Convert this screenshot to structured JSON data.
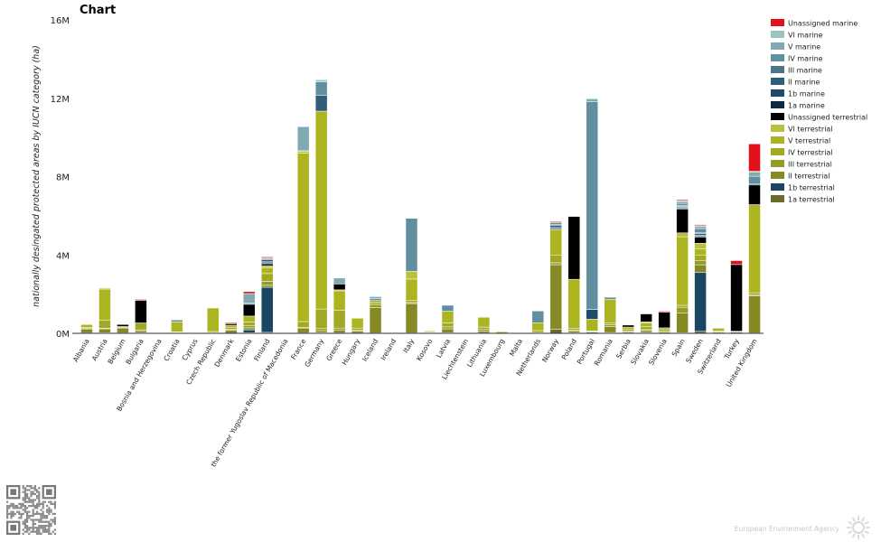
{
  "footer": {
    "brand": "European Environment Agency"
  },
  "chart_data": {
    "type": "bar",
    "stacked": true,
    "title": "Chart",
    "ylabel": "nationally desingated protected areas by IUCN category (ha)",
    "xlabel": "",
    "ylim": [
      0,
      16000000
    ],
    "yticks": [
      0,
      4000000,
      8000000,
      12000000,
      16000000
    ],
    "ytick_labels": [
      "0M",
      "4M",
      "8M",
      "12M",
      "16M"
    ],
    "grid": false,
    "legend_position": "top-right",
    "categories": [
      "Albania",
      "Austria",
      "Belgium",
      "Bulgaria",
      "Bosnia and Herzegovina",
      "Croatia",
      "Cyprus",
      "Czech Republic",
      "Denmark",
      "Estonia",
      "Finland",
      "the former Yugoslav Republic of Macedonia",
      "France",
      "Germany",
      "Greece",
      "Hungary",
      "Iceland",
      "Ireland",
      "Italy",
      "Kosovo",
      "Latvia",
      "Liechtenstein",
      "Lithuania",
      "Luxembourg",
      "Malta",
      "Netherlands",
      "Norway",
      "Poland",
      "Portugal",
      "Romania",
      "Serbia",
      "Slovakia",
      "Slovenia",
      "Spain",
      "Sweden",
      "Switzerland",
      "Turkey",
      "United Kingdom"
    ],
    "series": [
      {
        "name": "1a terrestrial",
        "color": "#6b6b2e",
        "values": [
          20000,
          30000,
          20000,
          30000,
          0,
          10000,
          0,
          10000,
          10000,
          30000,
          50000,
          0,
          20000,
          40000,
          20000,
          20000,
          20000,
          0,
          20000,
          0,
          30000,
          0,
          20000,
          0,
          0,
          10000,
          200000,
          30000,
          10000,
          40000,
          20000,
          40000,
          10000,
          30000,
          100000,
          20000,
          10000,
          20000
        ]
      },
      {
        "name": "1b terrestrial",
        "color": "#1a4663",
        "values": [
          0,
          0,
          0,
          0,
          0,
          0,
          0,
          0,
          0,
          150000,
          2300000,
          0,
          0,
          0,
          0,
          0,
          0,
          0,
          0,
          0,
          0,
          0,
          0,
          0,
          0,
          0,
          0,
          0,
          0,
          0,
          0,
          0,
          0,
          0,
          3000000,
          0,
          0,
          0
        ]
      },
      {
        "name": "II terrestrial",
        "color": "#858a24",
        "values": [
          200000,
          200000,
          250000,
          100000,
          0,
          30000,
          0,
          20000,
          150000,
          100000,
          100000,
          10000,
          250000,
          100000,
          150000,
          100000,
          1300000,
          0,
          1500000,
          30000,
          200000,
          0,
          100000,
          0,
          0,
          20000,
          3300000,
          80000,
          60000,
          300000,
          50000,
          100000,
          50000,
          1000000,
          400000,
          50000,
          50000,
          1900000
        ]
      },
      {
        "name": "III terrestrial",
        "color": "#959c26",
        "values": [
          30000,
          30000,
          30000,
          50000,
          0,
          10000,
          0,
          10000,
          50000,
          100000,
          200000,
          0,
          30000,
          100000,
          100000,
          50000,
          150000,
          0,
          50000,
          10000,
          100000,
          0,
          100000,
          0,
          0,
          10000,
          100000,
          50000,
          20000,
          100000,
          50000,
          50000,
          20000,
          300000,
          200000,
          20000,
          20000,
          50000
        ]
      },
      {
        "name": "IV terrestrial",
        "color": "#a0a824",
        "values": [
          50000,
          400000,
          50000,
          350000,
          0,
          30000,
          0,
          50000,
          100000,
          200000,
          400000,
          20000,
          300000,
          1000000,
          900000,
          100000,
          100000,
          0,
          100000,
          30000,
          200000,
          0,
          100000,
          0,
          0,
          100000,
          400000,
          100000,
          30000,
          100000,
          100000,
          150000,
          100000,
          100000,
          300000,
          20000,
          30000,
          100000
        ]
      },
      {
        "name": "V terrestrial",
        "color": "#acb51f",
        "values": [
          150000,
          1600000,
          0,
          0,
          0,
          500000,
          0,
          1200000,
          100000,
          300000,
          300000,
          0,
          8600000,
          10100000,
          1000000,
          500000,
          100000,
          30000,
          1100000,
          50000,
          600000,
          0,
          500000,
          80000,
          0,
          400000,
          1300000,
          2500000,
          600000,
          1200000,
          100000,
          200000,
          100000,
          3500000,
          300000,
          150000,
          0,
          4500000
        ]
      },
      {
        "name": "VI terrestrial",
        "color": "#b9c03c",
        "values": [
          0,
          50000,
          0,
          0,
          0,
          0,
          0,
          0,
          0,
          0,
          100000,
          0,
          100000,
          0,
          50000,
          0,
          0,
          0,
          400000,
          0,
          0,
          0,
          0,
          0,
          0,
          0,
          0,
          0,
          0,
          0,
          0,
          50000,
          0,
          200000,
          300000,
          0,
          0,
          0
        ]
      },
      {
        "name": "Unassigned terrestrial",
        "color": "#000000",
        "values": [
          0,
          0,
          100000,
          1150000,
          0,
          0,
          0,
          0,
          80000,
          600000,
          100000,
          0,
          0,
          0,
          300000,
          0,
          0,
          0,
          0,
          0,
          0,
          0,
          0,
          0,
          0,
          0,
          0,
          3200000,
          0,
          0,
          100000,
          400000,
          800000,
          1200000,
          300000,
          0,
          3400000,
          1000000
        ]
      },
      {
        "name": "1a marine",
        "color": "#0c2a44",
        "values": [
          0,
          0,
          0,
          0,
          0,
          0,
          0,
          0,
          0,
          0,
          50000,
          0,
          0,
          0,
          0,
          0,
          0,
          0,
          0,
          0,
          0,
          0,
          0,
          0,
          0,
          0,
          50000,
          0,
          0,
          0,
          0,
          0,
          0,
          50000,
          50000,
          0,
          0,
          0
        ]
      },
      {
        "name": "1b marine",
        "color": "#1e4d6b",
        "values": [
          0,
          0,
          0,
          0,
          0,
          0,
          0,
          0,
          0,
          0,
          50000,
          0,
          0,
          0,
          0,
          0,
          0,
          0,
          0,
          0,
          0,
          0,
          0,
          0,
          0,
          0,
          50000,
          0,
          500000,
          0,
          0,
          0,
          0,
          50000,
          50000,
          0,
          0,
          0
        ]
      },
      {
        "name": "II marine",
        "color": "#2f5e7b",
        "values": [
          0,
          0,
          0,
          0,
          0,
          0,
          0,
          0,
          0,
          0,
          100000,
          0,
          0,
          800000,
          0,
          0,
          0,
          0,
          0,
          0,
          0,
          0,
          0,
          0,
          0,
          0,
          100000,
          0,
          0,
          0,
          0,
          0,
          0,
          50000,
          100000,
          0,
          0,
          50000
        ]
      },
      {
        "name": "III marine",
        "color": "#4a7688",
        "values": [
          0,
          0,
          0,
          0,
          0,
          0,
          0,
          0,
          0,
          0,
          50000,
          0,
          0,
          0,
          0,
          0,
          0,
          0,
          0,
          0,
          0,
          0,
          0,
          0,
          0,
          0,
          50000,
          0,
          0,
          0,
          0,
          0,
          0,
          50000,
          50000,
          0,
          0,
          0
        ]
      },
      {
        "name": "IV marine",
        "color": "#628fa0",
        "values": [
          0,
          0,
          0,
          0,
          0,
          100000,
          0,
          0,
          0,
          50000,
          50000,
          0,
          50000,
          700000,
          0,
          0,
          100000,
          0,
          2700000,
          0,
          300000,
          0,
          0,
          0,
          0,
          600000,
          100000,
          0,
          10600000,
          100000,
          0,
          0,
          0,
          100000,
          200000,
          0,
          0,
          400000
        ]
      },
      {
        "name": "V marine",
        "color": "#80a9b3",
        "values": [
          0,
          0,
          0,
          0,
          0,
          0,
          0,
          0,
          0,
          500000,
          0,
          0,
          1200000,
          0,
          300000,
          0,
          100000,
          0,
          0,
          0,
          0,
          0,
          0,
          0,
          0,
          0,
          0,
          0,
          150000,
          0,
          0,
          0,
          0,
          100000,
          100000,
          0,
          0,
          200000
        ]
      },
      {
        "name": "VI marine",
        "color": "#9cc3c0",
        "values": [
          0,
          0,
          0,
          0,
          0,
          0,
          0,
          0,
          0,
          0,
          0,
          0,
          0,
          100000,
          0,
          0,
          0,
          0,
          0,
          0,
          0,
          0,
          0,
          0,
          0,
          0,
          0,
          0,
          0,
          0,
          0,
          0,
          0,
          50000,
          50000,
          0,
          0,
          50000
        ]
      },
      {
        "name": "Unassigned marine",
        "color": "#e3101b",
        "values": [
          0,
          0,
          0,
          50000,
          0,
          0,
          0,
          0,
          50000,
          100000,
          50000,
          0,
          0,
          0,
          0,
          0,
          0,
          0,
          0,
          0,
          0,
          0,
          0,
          0,
          0,
          0,
          50000,
          30000,
          0,
          0,
          0,
          0,
          50000,
          50000,
          50000,
          0,
          200000,
          1400000
        ]
      }
    ]
  }
}
